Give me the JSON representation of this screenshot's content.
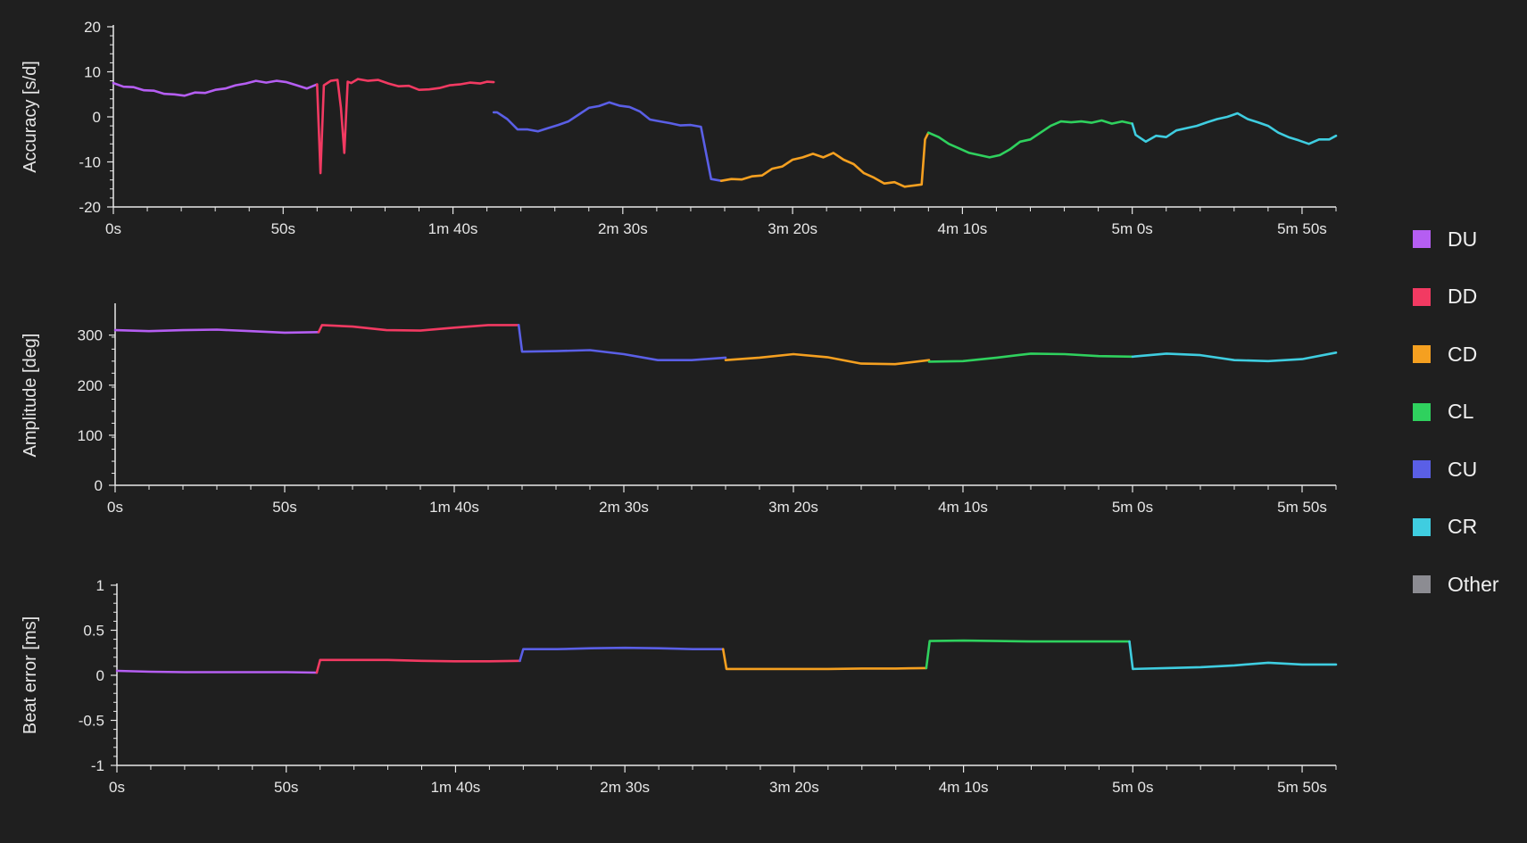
{
  "legend": [
    {
      "label": "DU",
      "color": "#b55ef2"
    },
    {
      "label": "DD",
      "color": "#f23a62"
    },
    {
      "label": "CD",
      "color": "#f5a020"
    },
    {
      "label": "CL",
      "color": "#2fd15e"
    },
    {
      "label": "CU",
      "color": "#5a5fe6"
    },
    {
      "label": "CR",
      "color": "#3fcde0"
    },
    {
      "label": "Other",
      "color": "#8c8c92"
    }
  ],
  "chart_data": [
    {
      "type": "line",
      "ylabel": "Accuracy [s/d]",
      "ylim": [
        -20,
        20
      ],
      "xlim": [
        0,
        360
      ],
      "yticks": [
        20,
        10,
        0,
        -10,
        -20
      ],
      "xticks": [
        0,
        50,
        100,
        150,
        200,
        250,
        300,
        350
      ],
      "xtick_labels": [
        "0s",
        "50s",
        "1m 40s",
        "2m 30s",
        "3m 20s",
        "4m 10s",
        "5m 0s",
        "5m 50s"
      ],
      "series": [
        {
          "name": "DU",
          "color": "#b55ef2",
          "x": [
            0,
            3,
            6,
            9,
            12,
            15,
            18,
            21,
            24,
            27,
            30,
            33,
            36,
            39,
            42,
            45,
            48,
            51,
            54,
            57,
            60
          ],
          "y": [
            7.5,
            6.7,
            6.6,
            5.9,
            5.8,
            5.1,
            5.0,
            4.7,
            5.4,
            5.3,
            6.0,
            6.3,
            7.0,
            7.4,
            8.0,
            7.6,
            8.0,
            7.7,
            7.0,
            6.3,
            7.2
          ]
        },
        {
          "name": "DD",
          "color": "#f23a62",
          "x": [
            60,
            61,
            62,
            64,
            66,
            67,
            68,
            69,
            70,
            72,
            75,
            78,
            81,
            84,
            87,
            90,
            93,
            96,
            99,
            102,
            105,
            108,
            110,
            112
          ],
          "y": [
            7.2,
            -12.5,
            7.0,
            8.0,
            8.2,
            2.0,
            -8.0,
            7.8,
            7.5,
            8.4,
            8.0,
            8.2,
            7.4,
            6.8,
            6.9,
            6.0,
            6.1,
            6.4,
            7.0,
            7.2,
            7.6,
            7.4,
            7.8,
            7.7
          ]
        },
        {
          "name": "CU",
          "color": "#5a5fe6",
          "x": [
            112,
            113,
            116,
            119,
            122,
            125,
            128,
            131,
            134,
            137,
            140,
            143,
            146,
            149,
            152,
            155,
            158,
            161,
            164,
            167,
            170,
            173,
            176,
            179
          ],
          "y": [
            1.0,
            1.0,
            -0.5,
            -2.8,
            -2.8,
            -3.2,
            -2.5,
            -1.8,
            -1.0,
            0.5,
            2.0,
            2.4,
            3.2,
            2.5,
            2.2,
            1.2,
            -0.6,
            -1.0,
            -1.4,
            -1.9,
            -1.8,
            -2.2,
            -13.8,
            -14.2
          ]
        },
        {
          "name": "CD",
          "color": "#f5a020",
          "x": [
            179,
            182,
            185,
            188,
            191,
            194,
            197,
            200,
            203,
            206,
            209,
            212,
            215,
            218,
            221,
            224,
            227,
            230,
            233,
            236,
            238,
            239,
            240
          ],
          "y": [
            -14.2,
            -13.8,
            -13.9,
            -13.2,
            -13.0,
            -11.5,
            -11.0,
            -9.5,
            -9.0,
            -8.2,
            -9.0,
            -8.0,
            -9.5,
            -10.5,
            -12.5,
            -13.5,
            -14.8,
            -14.5,
            -15.5,
            -15.2,
            -15.0,
            -5.0,
            -3.5
          ]
        },
        {
          "name": "CL",
          "color": "#2fd15e",
          "x": [
            240,
            243,
            246,
            249,
            252,
            255,
            258,
            261,
            264,
            267,
            270,
            273,
            276,
            279,
            282,
            285,
            288,
            291,
            294,
            297,
            300
          ],
          "y": [
            -3.5,
            -4.5,
            -6.0,
            -7.0,
            -8.0,
            -8.5,
            -9.0,
            -8.5,
            -7.2,
            -5.5,
            -5.0,
            -3.5,
            -2.0,
            -1.0,
            -1.2,
            -1.0,
            -1.3,
            -0.8,
            -1.5,
            -1.0,
            -1.5
          ]
        },
        {
          "name": "CR",
          "color": "#3fcde0",
          "x": [
            300,
            301,
            304,
            307,
            310,
            313,
            316,
            319,
            322,
            325,
            328,
            331,
            334,
            337,
            340,
            343,
            346,
            349,
            352,
            355,
            358,
            360
          ],
          "y": [
            -1.5,
            -4.0,
            -5.5,
            -4.2,
            -4.5,
            -3.0,
            -2.5,
            -2.0,
            -1.2,
            -0.5,
            0.0,
            0.8,
            -0.5,
            -1.2,
            -2.0,
            -3.5,
            -4.5,
            -5.2,
            -6.0,
            -5.0,
            -5.0,
            -4.2
          ]
        }
      ]
    },
    {
      "type": "line",
      "ylabel": "Amplitude [deg]",
      "ylim": [
        0,
        360
      ],
      "xlim": [
        0,
        360
      ],
      "yticks": [
        300,
        200,
        100,
        0
      ],
      "xticks": [
        0,
        50,
        100,
        150,
        200,
        250,
        300,
        350
      ],
      "xtick_labels": [
        "0s",
        "50s",
        "1m 40s",
        "2m 30s",
        "3m 20s",
        "4m 10s",
        "5m 0s",
        "5m 50s"
      ],
      "series": [
        {
          "name": "DU",
          "color": "#b55ef2",
          "x": [
            0,
            10,
            20,
            30,
            40,
            50,
            60
          ],
          "y": [
            310,
            308,
            310,
            311,
            308,
            305,
            306
          ]
        },
        {
          "name": "DD",
          "color": "#f23a62",
          "x": [
            60,
            61,
            70,
            80,
            90,
            100,
            110,
            119
          ],
          "y": [
            306,
            320,
            317,
            310,
            309,
            315,
            320,
            320
          ]
        },
        {
          "name": "CU",
          "color": "#5a5fe6",
          "x": [
            119,
            120,
            130,
            140,
            150,
            160,
            170,
            180
          ],
          "y": [
            320,
            267,
            268,
            270,
            262,
            250,
            250,
            255
          ]
        },
        {
          "name": "CD",
          "color": "#f5a020",
          "x": [
            180,
            190,
            200,
            210,
            220,
            230,
            240
          ],
          "y": [
            250,
            255,
            262,
            256,
            243,
            242,
            250
          ]
        },
        {
          "name": "CL",
          "color": "#2fd15e",
          "x": [
            240,
            250,
            260,
            270,
            280,
            290,
            300
          ],
          "y": [
            247,
            248,
            255,
            263,
            262,
            258,
            257
          ]
        },
        {
          "name": "CR",
          "color": "#3fcde0",
          "x": [
            300,
            310,
            320,
            330,
            340,
            350,
            360
          ],
          "y": [
            257,
            263,
            260,
            250,
            248,
            252,
            265
          ]
        }
      ]
    },
    {
      "type": "line",
      "ylabel": "Beat error [ms]",
      "ylim": [
        -1,
        1
      ],
      "xlim": [
        0,
        360
      ],
      "yticks": [
        1,
        0.5,
        0,
        -0.5,
        -1
      ],
      "ytick_labels": [
        "1",
        "0.5",
        "0",
        "-0.5",
        "-1"
      ],
      "xticks": [
        0,
        50,
        100,
        150,
        200,
        250,
        300,
        350
      ],
      "xtick_labels": [
        "0s",
        "50s",
        "1m 40s",
        "2m 30s",
        "3m 20s",
        "4m 10s",
        "5m 0s",
        "5m 50s"
      ],
      "series": [
        {
          "name": "DU",
          "color": "#b55ef2",
          "x": [
            0,
            10,
            20,
            30,
            40,
            50,
            59
          ],
          "y": [
            0.05,
            0.04,
            0.035,
            0.035,
            0.035,
            0.035,
            0.03
          ]
        },
        {
          "name": "DD",
          "color": "#f23a62",
          "x": [
            59,
            60,
            70,
            80,
            90,
            100,
            110,
            119
          ],
          "y": [
            0.03,
            0.17,
            0.17,
            0.17,
            0.16,
            0.155,
            0.155,
            0.16
          ]
        },
        {
          "name": "CU",
          "color": "#5a5fe6",
          "x": [
            119,
            120,
            130,
            140,
            150,
            160,
            170,
            179
          ],
          "y": [
            0.16,
            0.29,
            0.29,
            0.3,
            0.305,
            0.3,
            0.29,
            0.29
          ]
        },
        {
          "name": "CD",
          "color": "#f5a020",
          "x": [
            179,
            180,
            190,
            200,
            210,
            220,
            230,
            239
          ],
          "y": [
            0.29,
            0.07,
            0.07,
            0.07,
            0.07,
            0.075,
            0.075,
            0.08
          ]
        },
        {
          "name": "CL",
          "color": "#2fd15e",
          "x": [
            239,
            240,
            250,
            260,
            270,
            280,
            290,
            299
          ],
          "y": [
            0.08,
            0.38,
            0.385,
            0.38,
            0.375,
            0.375,
            0.375,
            0.375
          ]
        },
        {
          "name": "CR",
          "color": "#3fcde0",
          "x": [
            299,
            300,
            310,
            320,
            330,
            340,
            350,
            360
          ],
          "y": [
            0.375,
            0.07,
            0.08,
            0.09,
            0.11,
            0.14,
            0.12,
            0.12
          ]
        }
      ]
    }
  ]
}
